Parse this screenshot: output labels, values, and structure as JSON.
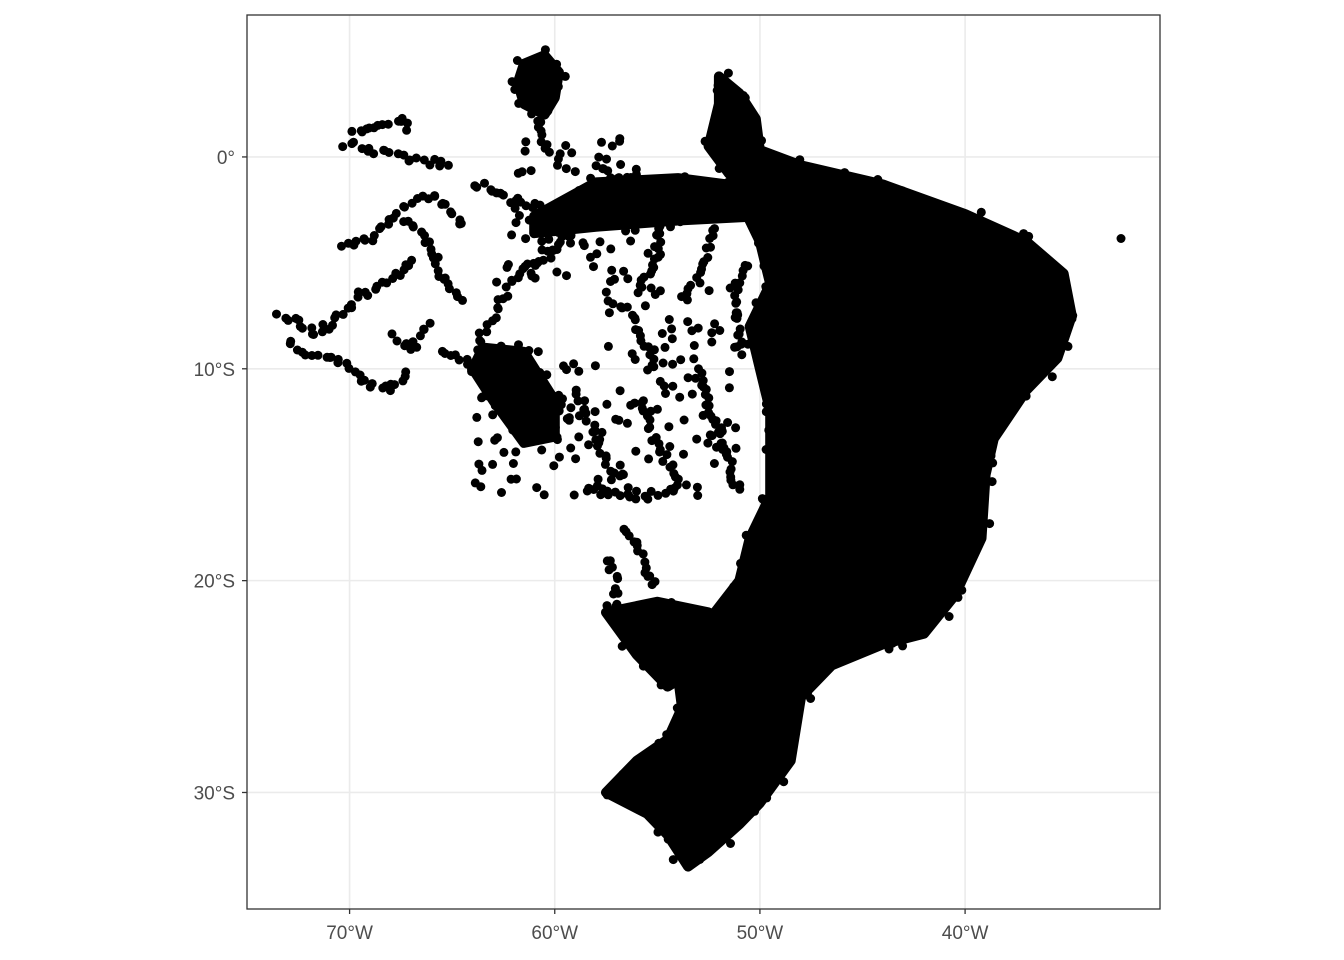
{
  "chart_data": {
    "type": "scatter",
    "title": "",
    "xlabel": "",
    "ylabel": "",
    "xlim": [
      -75,
      -30.5
    ],
    "ylim": [
      -35.5,
      6.7
    ],
    "x_ticks": [
      {
        "value": -70,
        "label": "70°W"
      },
      {
        "value": -60,
        "label": "60°W"
      },
      {
        "value": -50,
        "label": "50°W"
      },
      {
        "value": -40,
        "label": "40°W"
      }
    ],
    "y_ticks": [
      {
        "value": 0,
        "label": "0°"
      },
      {
        "value": -10,
        "label": "10°S"
      },
      {
        "value": -20,
        "label": "20°S"
      },
      {
        "value": -30,
        "label": "30°S"
      }
    ],
    "grid": true,
    "point_color": "#000000",
    "panel_border_color": "#333333",
    "grid_color": "#ebebeb",
    "dense_regions": [
      {
        "name": "east-coast-mass",
        "polygon": [
          [
            -50.5,
            0.5
          ],
          [
            -48,
            -0.4
          ],
          [
            -44,
            -1.3
          ],
          [
            -40,
            -2.7
          ],
          [
            -37,
            -4
          ],
          [
            -35.2,
            -5.5
          ],
          [
            -34.8,
            -7.5
          ],
          [
            -35.5,
            -9.5
          ],
          [
            -37,
            -11
          ],
          [
            -38.6,
            -13.3
          ],
          [
            -39,
            -15
          ],
          [
            -39.2,
            -18
          ],
          [
            -40.5,
            -20.7
          ],
          [
            -42,
            -22.5
          ],
          [
            -44,
            -23
          ],
          [
            -46.5,
            -24
          ],
          [
            -48,
            -25.5
          ],
          [
            -48.5,
            -28.5
          ],
          [
            -50,
            -30.5
          ],
          [
            -51,
            -31.5
          ],
          [
            -52.5,
            -32.8
          ],
          [
            -53.5,
            -33.5
          ],
          [
            -54.5,
            -32
          ],
          [
            -55.5,
            -31
          ],
          [
            -57.5,
            -30
          ],
          [
            -56,
            -28.5
          ],
          [
            -54.5,
            -27.5
          ],
          [
            -53.8,
            -26
          ],
          [
            -54,
            -24.5
          ],
          [
            -53,
            -22.5
          ],
          [
            -51,
            -20
          ],
          [
            -50.5,
            -18
          ],
          [
            -49.5,
            -16
          ],
          [
            -49.5,
            -12
          ],
          [
            -50,
            -10
          ],
          [
            -50.5,
            -8
          ],
          [
            -49.5,
            -6
          ],
          [
            -50,
            -4
          ],
          [
            -51,
            -2
          ],
          [
            -51.5,
            0
          ]
        ]
      },
      {
        "name": "amapa-strip",
        "polygon": [
          [
            -52,
            3.8
          ],
          [
            -51,
            3
          ],
          [
            -50.2,
            1.8
          ],
          [
            -50,
            0.3
          ],
          [
            -51.5,
            -0.8
          ],
          [
            -52.5,
            0.5
          ],
          [
            -52,
            2.5
          ]
        ]
      },
      {
        "name": "amazon-river-band",
        "polygon": [
          [
            -58,
            -1.2
          ],
          [
            -54,
            -1
          ],
          [
            -50,
            -1.5
          ],
          [
            -50,
            -2.8
          ],
          [
            -54,
            -3
          ],
          [
            -58,
            -3.3
          ],
          [
            -61,
            -3.6
          ],
          [
            -61,
            -2.8
          ]
        ]
      },
      {
        "name": "roraima-cluster",
        "polygon": [
          [
            -61.5,
            4.4
          ],
          [
            -60.5,
            4.8
          ],
          [
            -59.8,
            4
          ],
          [
            -60,
            2.8
          ],
          [
            -60.5,
            2
          ],
          [
            -61.5,
            2.5
          ],
          [
            -61.8,
            3.5
          ]
        ]
      },
      {
        "name": "rondonia-cluster",
        "polygon": [
          [
            -63.5,
            -9
          ],
          [
            -61.5,
            -9.2
          ],
          [
            -60,
            -11.5
          ],
          [
            -60,
            -13.2
          ],
          [
            -61.5,
            -13.5
          ],
          [
            -63,
            -11.5
          ],
          [
            -64,
            -10
          ]
        ]
      },
      {
        "name": "parana-interior",
        "polygon": [
          [
            -55,
            -21
          ],
          [
            -52.5,
            -21.5
          ],
          [
            -52.8,
            -24
          ],
          [
            -54.5,
            -25
          ],
          [
            -56,
            -23.5
          ],
          [
            -57.5,
            -21.5
          ]
        ]
      }
    ],
    "scatter_lines": [
      {
        "name": "rio-negro",
        "points": [
          [
            -70.2,
            0.6
          ],
          [
            -69,
            0.3
          ],
          [
            -67.5,
            0
          ],
          [
            -66.5,
            -0.2
          ],
          [
            -65,
            -0.4
          ]
        ]
      },
      {
        "name": "upper-negro-arc",
        "points": [
          [
            -69.8,
            1.1
          ],
          [
            -69,
            1.4
          ],
          [
            -68,
            1.6
          ],
          [
            -67.3,
            1.7
          ],
          [
            -67,
            1
          ]
        ]
      },
      {
        "name": "juta-river",
        "points": [
          [
            -70.3,
            -4.3
          ],
          [
            -69,
            -3.8
          ],
          [
            -68,
            -3
          ],
          [
            -67,
            -2.2
          ],
          [
            -66,
            -1.8
          ],
          [
            -65,
            -2.5
          ],
          [
            -64.3,
            -3.5
          ]
        ]
      },
      {
        "name": "purus-upper",
        "points": [
          [
            -67.5,
            -3
          ],
          [
            -66.6,
            -3.5
          ],
          [
            -66,
            -4.5
          ],
          [
            -65.5,
            -5.5
          ],
          [
            -65,
            -6.3
          ],
          [
            -64.5,
            -7
          ]
        ]
      },
      {
        "name": "jurua",
        "points": [
          [
            -69.5,
            -6.5
          ],
          [
            -68,
            -5.8
          ],
          [
            -67.3,
            -5.2
          ],
          [
            -66.8,
            -4.6
          ]
        ]
      },
      {
        "name": "acre-west",
        "points": [
          [
            -73.5,
            -7.5
          ],
          [
            -72.5,
            -7.8
          ],
          [
            -71.8,
            -8.3
          ],
          [
            -71,
            -8
          ],
          [
            -70.5,
            -7.5
          ],
          [
            -69.8,
            -7
          ],
          [
            -69.5,
            -6.5
          ]
        ]
      },
      {
        "name": "acre-south",
        "points": [
          [
            -73,
            -8.8
          ],
          [
            -72,
            -9.2
          ],
          [
            -71,
            -9.5
          ],
          [
            -70,
            -10
          ],
          [
            -69,
            -10.8
          ],
          [
            -68,
            -11
          ],
          [
            -67,
            -10
          ]
        ]
      },
      {
        "name": "purus-mid",
        "points": [
          [
            -67.8,
            -8.5
          ],
          [
            -67,
            -9
          ],
          [
            -66.5,
            -8.3
          ],
          [
            -66,
            -7.8
          ]
        ]
      },
      {
        "name": "madeira",
        "points": [
          [
            -63.8,
            -8.8
          ],
          [
            -63,
            -7.5
          ],
          [
            -62.3,
            -6.2
          ],
          [
            -61.5,
            -5.3
          ],
          [
            -60.5,
            -4.8
          ],
          [
            -59.8,
            -4.2
          ],
          [
            -59,
            -3.7
          ]
        ]
      },
      {
        "name": "madeira-west",
        "points": [
          [
            -65.5,
            -9.2
          ],
          [
            -64.5,
            -9.5
          ],
          [
            -63.8,
            -10
          ],
          [
            -63,
            -10.5
          ]
        ]
      },
      {
        "name": "tapajos",
        "points": [
          [
            -56,
            -6.5
          ],
          [
            -55.5,
            -5.5
          ],
          [
            -55,
            -4.5
          ],
          [
            -55,
            -3.2
          ],
          [
            -54.8,
            -2.5
          ]
        ]
      },
      {
        "name": "xingu",
        "points": [
          [
            -53.5,
            -6.5
          ],
          [
            -52.8,
            -5.5
          ],
          [
            -52.3,
            -4
          ],
          [
            -52,
            -3
          ]
        ]
      },
      {
        "name": "teles-pires",
        "points": [
          [
            -57.5,
            -6.5
          ],
          [
            -56.5,
            -7.2
          ],
          [
            -56,
            -8
          ],
          [
            -55.3,
            -9.2
          ],
          [
            -55,
            -10
          ]
        ]
      },
      {
        "name": "mt-north-1",
        "points": [
          [
            -59,
            -11
          ],
          [
            -58.5,
            -12
          ],
          [
            -58,
            -13
          ],
          [
            -57.5,
            -14.5
          ],
          [
            -57,
            -15.3
          ]
        ]
      },
      {
        "name": "mt-central",
        "points": [
          [
            -56,
            -11.5
          ],
          [
            -55.5,
            -12.5
          ],
          [
            -55,
            -13.5
          ],
          [
            -54.5,
            -14.5
          ],
          [
            -54,
            -15.2
          ]
        ]
      },
      {
        "name": "mt-south",
        "points": [
          [
            -58.5,
            -15.5
          ],
          [
            -57.5,
            -15.8
          ],
          [
            -56.5,
            -16
          ],
          [
            -55.5,
            -16
          ],
          [
            -54.5,
            -15.8
          ],
          [
            -53.5,
            -15.5
          ]
        ]
      },
      {
        "name": "mt-east",
        "points": [
          [
            -53,
            -10
          ],
          [
            -52.5,
            -11.5
          ],
          [
            -52,
            -13
          ],
          [
            -51.5,
            -14.5
          ],
          [
            -51,
            -16
          ]
        ]
      },
      {
        "name": "pantanal",
        "points": [
          [
            -56.5,
            -17.5
          ],
          [
            -56,
            -18.5
          ],
          [
            -55.5,
            -19.5
          ],
          [
            -55,
            -20.5
          ]
        ]
      },
      {
        "name": "ms-west",
        "points": [
          [
            -57.5,
            -19
          ],
          [
            -57,
            -20
          ],
          [
            -57,
            -21
          ],
          [
            -56.5,
            -22
          ]
        ]
      },
      {
        "name": "amazon-north",
        "points": [
          [
            -62,
            -2
          ],
          [
            -60.5,
            -2.5
          ],
          [
            -59,
            -2.2
          ],
          [
            -57.5,
            -1.8
          ],
          [
            -56,
            -1.5
          ]
        ]
      },
      {
        "name": "negro-lower",
        "points": [
          [
            -64,
            -1.3
          ],
          [
            -63,
            -1.5
          ],
          [
            -62.2,
            -2
          ],
          [
            -61.5,
            -2.8
          ]
        ]
      },
      {
        "name": "trombetas",
        "points": [
          [
            -58,
            -0.5
          ],
          [
            -57,
            -1
          ],
          [
            -56,
            -1.3
          ],
          [
            -55,
            -1.6
          ]
        ]
      },
      {
        "name": "roraima-south",
        "points": [
          [
            -61,
            2
          ],
          [
            -60.7,
            1.2
          ],
          [
            -60.3,
            0.5
          ],
          [
            -60,
            0
          ]
        ]
      },
      {
        "name": "pa-interior",
        "points": [
          [
            -50.5,
            -5
          ],
          [
            -51.3,
            -6.5
          ],
          [
            -51,
            -8
          ],
          [
            -50.8,
            -9.5
          ]
        ]
      },
      {
        "name": "tocantins",
        "points": [
          [
            -48.5,
            -6
          ],
          [
            -48.3,
            -7.5
          ],
          [
            -48,
            -9
          ],
          [
            -47.8,
            -10.5
          ],
          [
            -47.5,
            -12
          ]
        ]
      }
    ]
  },
  "outlier_points": [
    [
      -32.4,
      -3.85
    ]
  ]
}
